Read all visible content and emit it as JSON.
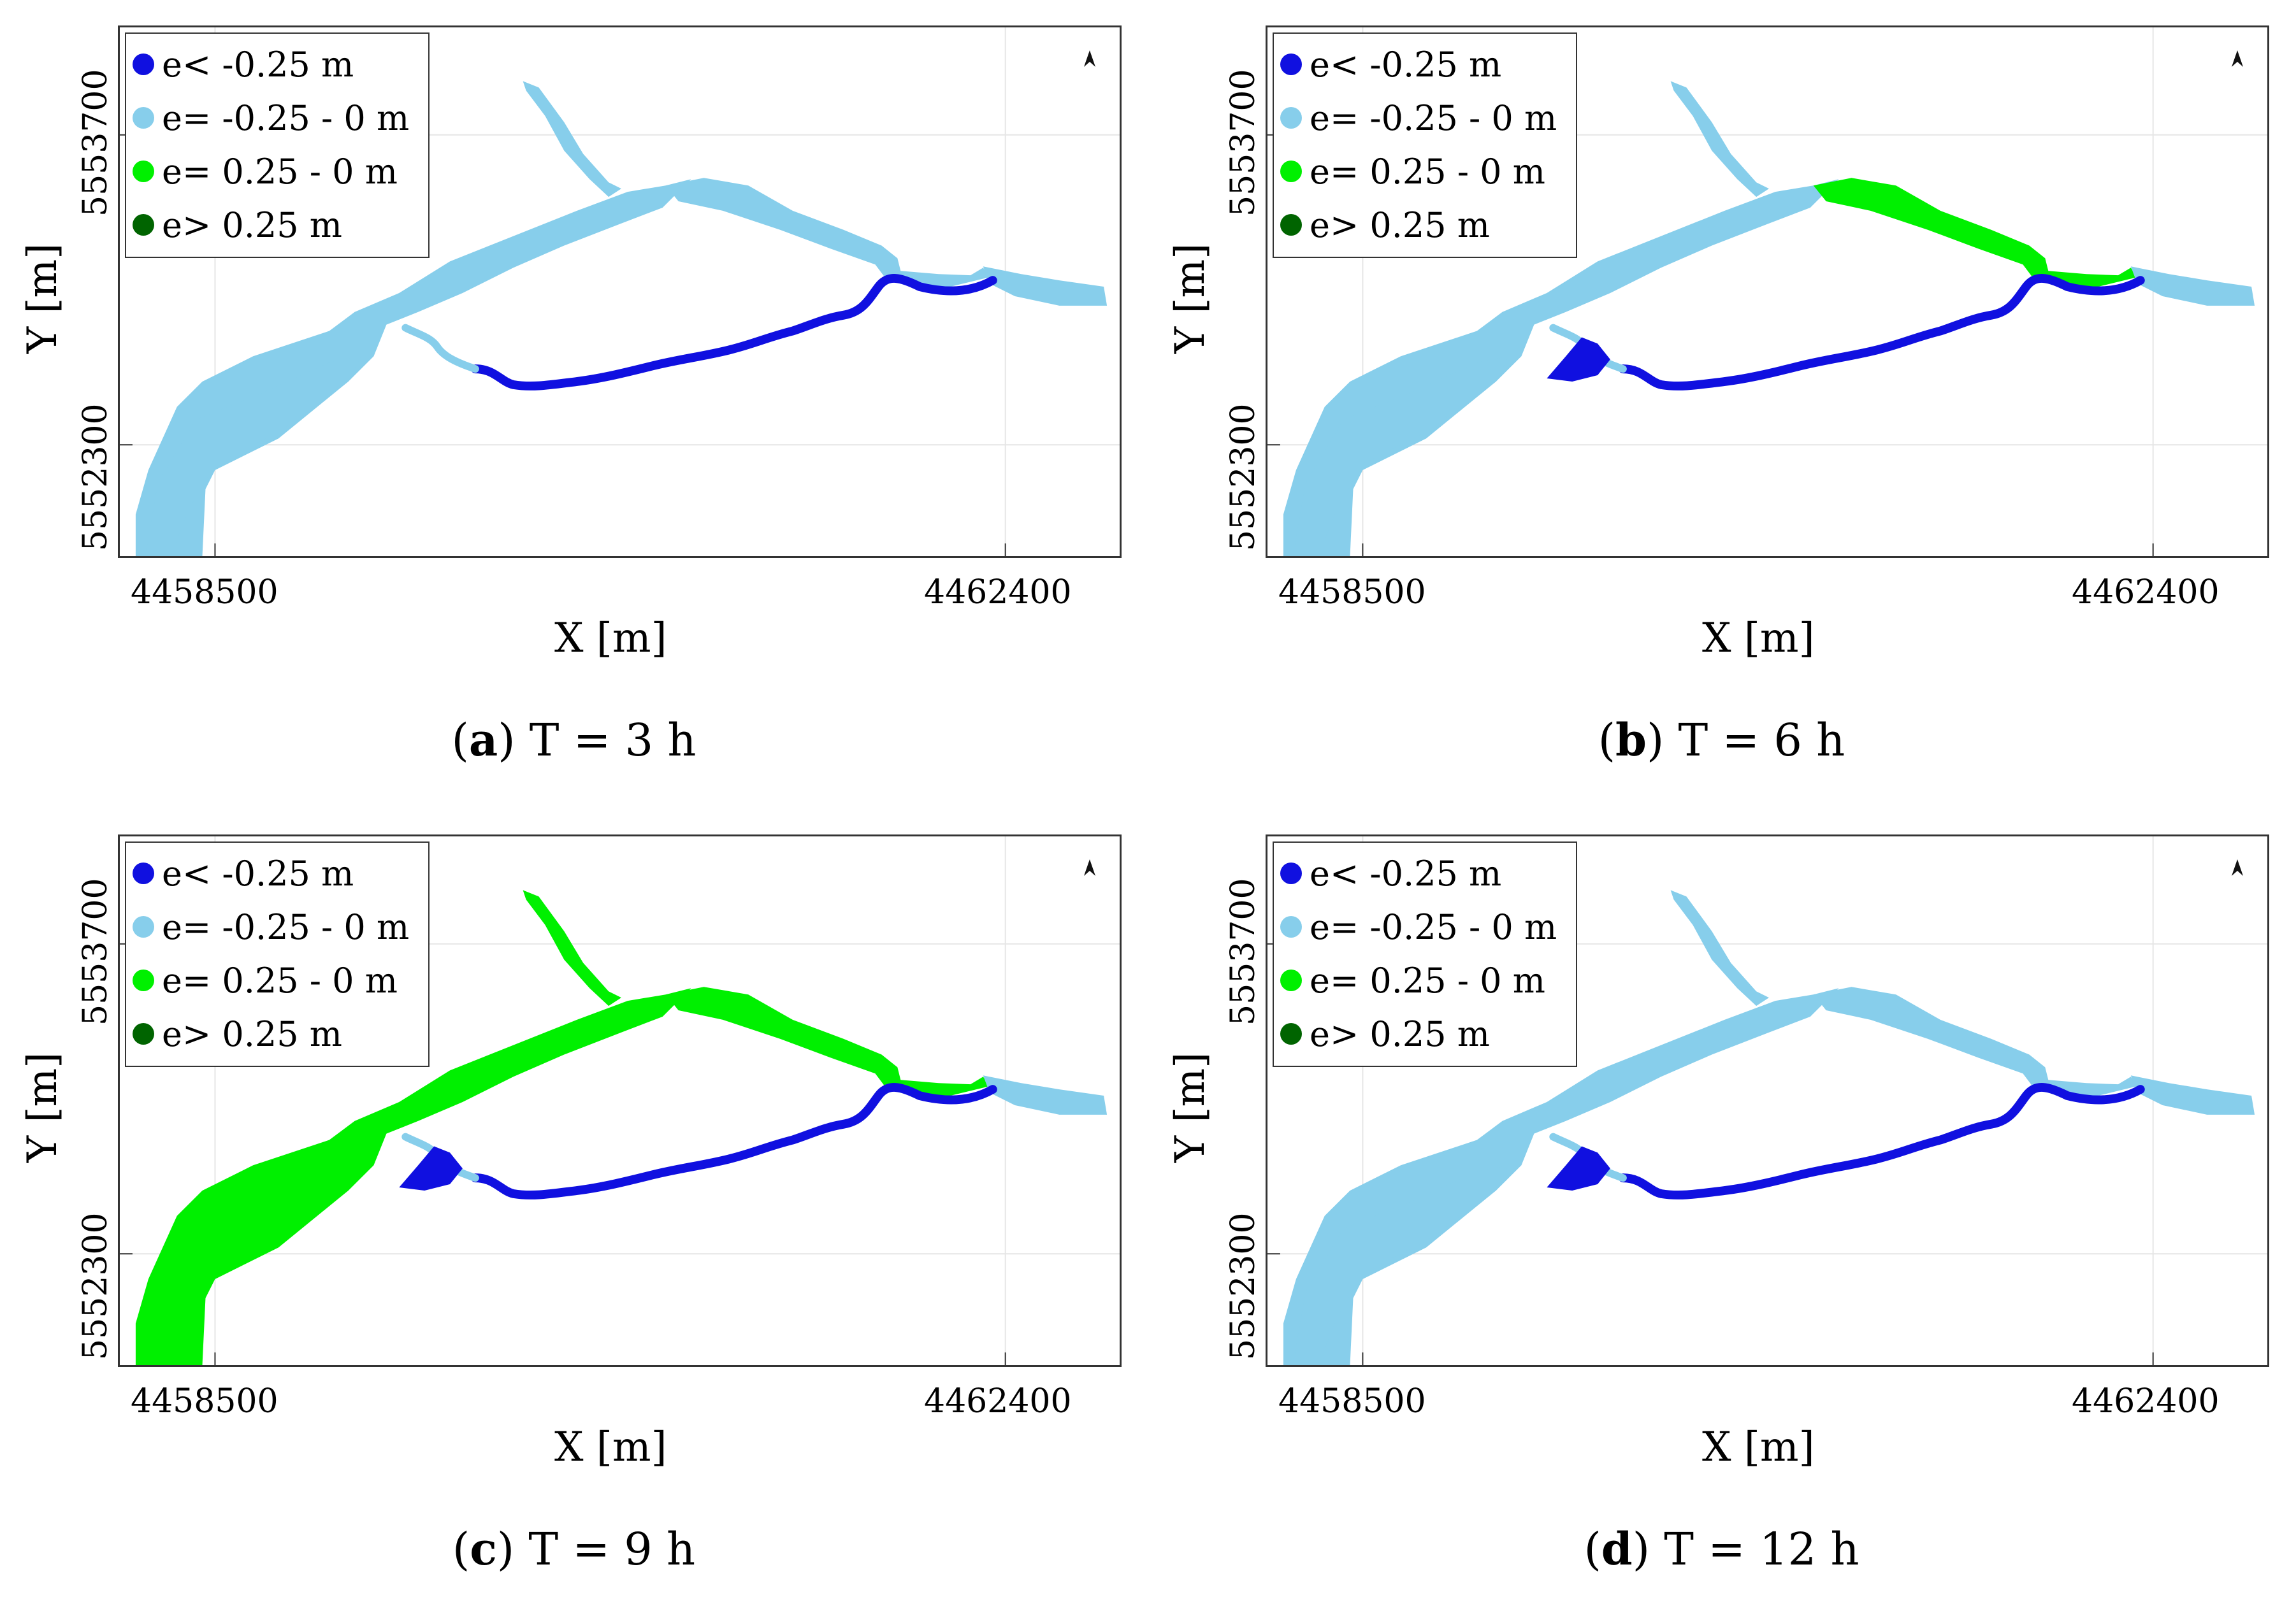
{
  "colors": {
    "below_minus_025": "#1010e0",
    "minus_025_to_0": "#87ceeb",
    "zero_to_025": "#00f000",
    "above_025": "#006400",
    "grid": "#e6e6e6",
    "axis": "#333333"
  },
  "legend": [
    {
      "label": "e< -0.25 m",
      "color_key": "below_minus_025"
    },
    {
      "label": "e= -0.25 - 0 m",
      "color_key": "minus_025_to_0"
    },
    {
      "label": "e= 0.25 - 0 m",
      "color_key": "zero_to_025"
    },
    {
      "label": "e> 0.25 m",
      "color_key": "above_025"
    }
  ],
  "axes": {
    "xlabel": "X [m]",
    "ylabel": "Y [m]",
    "xticks": [
      "4458500",
      "4462400"
    ],
    "yticks": [
      "5553700",
      "5552300"
    ]
  },
  "north_arrow_icon": "north-arrow-icon",
  "panels": [
    {
      "letter": "a",
      "caption": "T = 3 h",
      "main_channel": "minus_025_to_0",
      "upper_branch": "minus_025_to_0",
      "east_reach": "minus_025_to_0",
      "river_loop": "below_minus_025",
      "side_pond": "none"
    },
    {
      "letter": "b",
      "caption": "T = 6 h",
      "main_channel": "minus_025_to_0",
      "upper_branch": "minus_025_to_0",
      "east_reach": "zero_to_025",
      "river_loop": "below_minus_025",
      "side_pond": "below_minus_025"
    },
    {
      "letter": "c",
      "caption": "T = 9 h",
      "main_channel": "zero_to_025",
      "upper_branch": "zero_to_025",
      "east_reach": "zero_to_025",
      "river_loop": "below_minus_025",
      "side_pond": "below_minus_025"
    },
    {
      "letter": "d",
      "caption": "T = 12 h",
      "main_channel": "minus_025_to_0",
      "upper_branch": "minus_025_to_0",
      "east_reach": "minus_025_to_0",
      "river_loop": "below_minus_025",
      "side_pond": "below_minus_025"
    }
  ]
}
